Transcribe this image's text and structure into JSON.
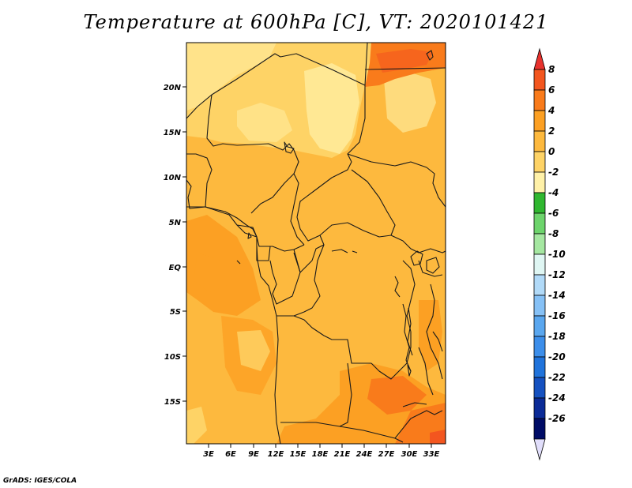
{
  "title": "Temperature at 600hPa [C], VT: 2020101421",
  "credit": "GrADS: IGES/COLA",
  "lat_ticks": [
    "20N",
    "15N",
    "10N",
    "5N",
    "EQ",
    "5S",
    "10S",
    "15S"
  ],
  "lon_ticks": [
    "3E",
    "6E",
    "9E",
    "12E",
    "15E",
    "18E",
    "21E",
    "24E",
    "27E",
    "30E",
    "33E"
  ],
  "colorbar": {
    "labels": [
      "8",
      "6",
      "4",
      "2",
      "0",
      "-2",
      "-4",
      "-6",
      "-8",
      "-10",
      "-12",
      "-14",
      "-16",
      "-18",
      "-20",
      "-22",
      "-24",
      "-26"
    ],
    "colors": [
      "#e8322d",
      "#f3561f",
      "#f97b1b",
      "#fca023",
      "#fdb93e",
      "#fed366",
      "#fff1a8",
      "#30b730",
      "#6dd46c",
      "#a5e7a1",
      "#dff6f3",
      "#b1daf8",
      "#86c1f6",
      "#5aa7ef",
      "#3c8eea",
      "#2073db",
      "#1551c0",
      "#0b2b97",
      "#000c66",
      "#e1defb"
    ]
  }
}
